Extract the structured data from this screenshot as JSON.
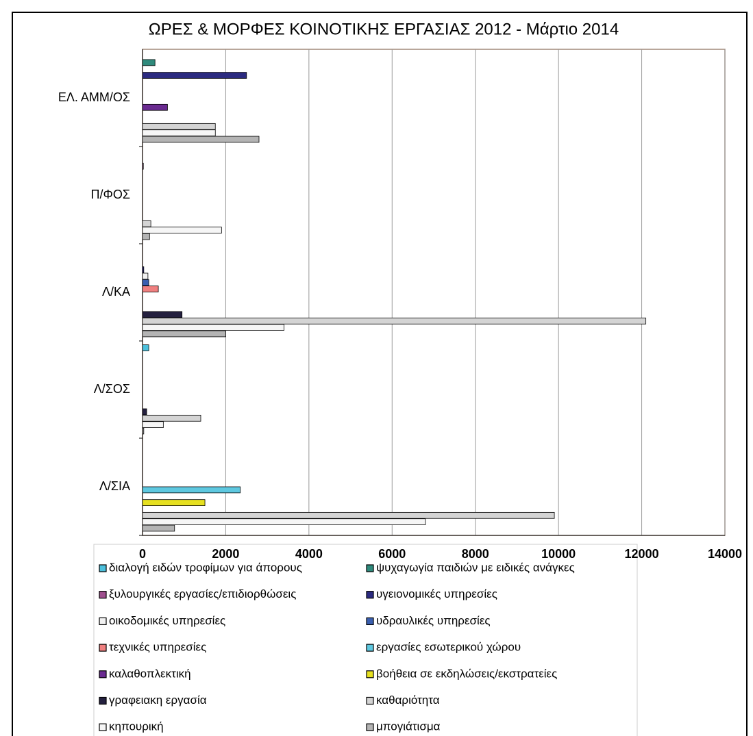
{
  "chart_data": {
    "type": "bar",
    "orientation": "horizontal",
    "title": "ΩΡΕΣ & ΜΟΡΦΕΣ ΚΟΙΝΟΤΙΚΗΣ ΕΡΓΑΣΙΑΣ 2012 - Μάρτιο 2014",
    "categories": [
      "ΕΛ. ΑΜΜ/ΟΣ",
      "Π/ΦΟΣ",
      "Λ/ΚΑ",
      "Λ/ΣΟΣ",
      "Λ/ΣΙΑ"
    ],
    "xlim": [
      0,
      14000
    ],
    "xticks": [
      0,
      2000,
      4000,
      6000,
      8000,
      10000,
      12000,
      14000
    ],
    "grid": true,
    "series": [
      {
        "name": "διαλογή ειδών τροφίμων για άπορους",
        "color": "#4cc0dc",
        "values": [
          null,
          null,
          null,
          150,
          null
        ]
      },
      {
        "name": "ψυχαγωγία παιδιών με ειδικές ανάγκες",
        "color": "#2f8a7c",
        "values": [
          300,
          null,
          null,
          null,
          null
        ]
      },
      {
        "name": "ξυλουργικές εργασίες/επιδιορθώσεις",
        "color": "#a0508f",
        "values": [
          null,
          20,
          null,
          null,
          null
        ]
      },
      {
        "name": "υγειονομικές υπηρεσίες",
        "color": "#2b2a80",
        "values": [
          2500,
          null,
          30,
          null,
          null
        ]
      },
      {
        "name": "οικοδομικές υπηρεσίες",
        "color": "#f2f2f2",
        "values": [
          null,
          null,
          130,
          null,
          null
        ]
      },
      {
        "name": "υδραυλικές υπηρεσίες",
        "color": "#3a5fb0",
        "values": [
          null,
          null,
          150,
          null,
          null
        ]
      },
      {
        "name": "τεχνικές υπηρεσίες",
        "color": "#f08080",
        "values": [
          null,
          null,
          380,
          null,
          null
        ]
      },
      {
        "name": "εργασίες εσωτερικού χώρου",
        "color": "#5ec8e0",
        "values": [
          null,
          null,
          null,
          null,
          2350
        ]
      },
      {
        "name": "καλαθοπλεκτική",
        "color": "#6a2a90",
        "values": [
          600,
          null,
          null,
          null,
          null
        ]
      },
      {
        "name": "βοήθεια σε εκδηλώσεις/εκστρατείες",
        "color": "#e6e020",
        "values": [
          null,
          null,
          null,
          null,
          1500
        ]
      },
      {
        "name": "γραφειακη εργασία",
        "color": "#24203f",
        "values": [
          null,
          null,
          950,
          100,
          null
        ]
      },
      {
        "name": "καθαριότητα",
        "color": "#d4d4d4",
        "values": [
          1750,
          200,
          12100,
          1400,
          9900
        ]
      },
      {
        "name": "κηπουρική",
        "color": "#f6f6f6",
        "values": [
          1750,
          1900,
          3400,
          500,
          6800
        ]
      },
      {
        "name": "μπογιάτισμα",
        "color": "#b4b4b4",
        "values": [
          2800,
          170,
          2000,
          30,
          770
        ]
      }
    ]
  }
}
